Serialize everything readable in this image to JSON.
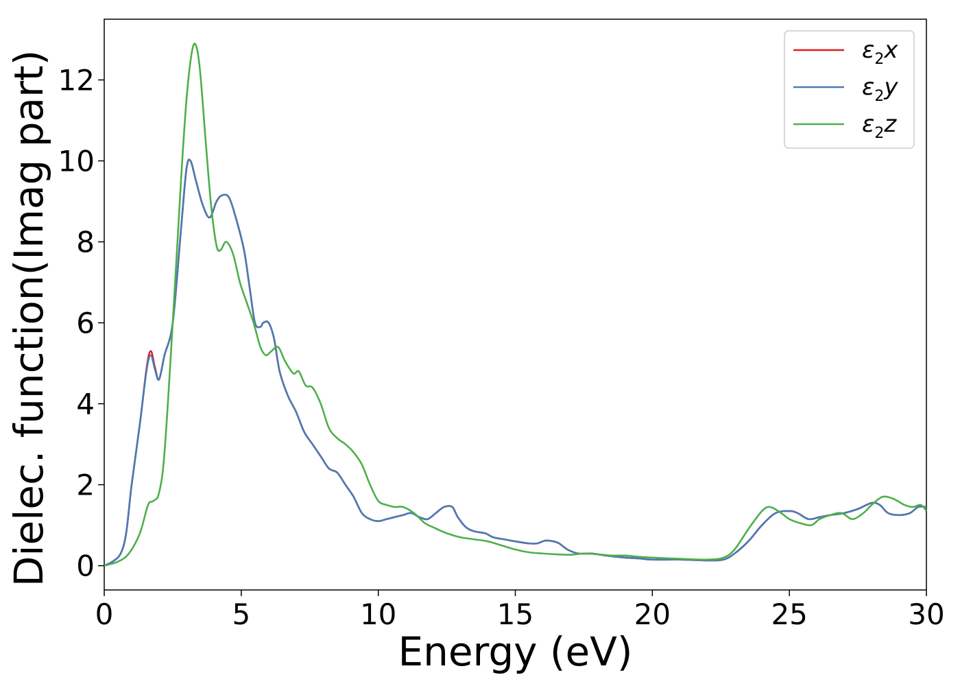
{
  "chart_data": {
    "type": "line",
    "title": "",
    "xlabel": "Energy (eV)",
    "ylabel": "Dielec. function(Imag part)",
    "xlim": [
      0,
      30
    ],
    "ylim": [
      -0.6,
      13.5
    ],
    "xticks": [
      0,
      5,
      10,
      15,
      20,
      25,
      30
    ],
    "xtick_labels": [
      "0",
      "5",
      "10",
      "15",
      "20",
      "25",
      "30"
    ],
    "yticks": [
      0,
      2,
      4,
      6,
      8,
      10,
      12
    ],
    "ytick_labels": [
      "0",
      "2",
      "4",
      "6",
      "8",
      "10",
      "12"
    ],
    "grid": false,
    "legend_position": "top-right",
    "series": [
      {
        "name": "ε2x",
        "legend": {
          "base": "ε",
          "sub": "2",
          "tail": "x"
        },
        "color": "#e41a1c",
        "x": [
          0,
          0.3,
          0.6,
          0.8,
          1.0,
          1.3,
          1.55,
          1.7,
          1.85,
          2.0,
          2.2,
          2.5,
          2.8,
          3.0,
          3.15,
          3.35,
          3.6,
          3.85,
          4.1,
          4.3,
          4.55,
          4.8,
          5.1,
          5.3,
          5.5,
          5.7,
          5.8,
          6.0,
          6.2,
          6.4,
          6.7,
          7.0,
          7.3,
          7.6,
          7.9,
          8.2,
          8.5,
          8.8,
          9.1,
          9.4,
          9.7,
          10.0,
          10.3,
          10.6,
          10.9,
          11.2,
          11.5,
          11.8,
          12.1,
          12.4,
          12.7,
          12.9,
          13.2,
          13.5,
          13.9,
          14.2,
          14.6,
          15.0,
          15.5,
          15.8,
          16.1,
          16.4,
          16.6,
          16.9,
          17.3,
          17.8,
          18.3,
          19.0,
          19.5,
          20.0,
          21.0,
          22.0,
          22.6,
          23.0,
          23.5,
          24.0,
          24.5,
          25.0,
          25.3,
          25.7,
          26.1,
          26.5,
          27.0,
          27.5,
          28.0,
          28.3,
          28.6,
          29.0,
          29.4,
          29.7,
          30.0
        ],
        "y": [
          0,
          0.1,
          0.3,
          0.8,
          2.0,
          3.5,
          4.9,
          5.3,
          4.9,
          4.6,
          5.2,
          6.0,
          8.3,
          9.8,
          10.0,
          9.5,
          8.9,
          8.6,
          9.0,
          9.15,
          9.1,
          8.6,
          7.8,
          6.9,
          6.0,
          5.9,
          6.0,
          6.0,
          5.6,
          4.8,
          4.2,
          3.8,
          3.3,
          3.0,
          2.7,
          2.4,
          2.3,
          2.0,
          1.7,
          1.3,
          1.15,
          1.1,
          1.15,
          1.2,
          1.25,
          1.3,
          1.2,
          1.15,
          1.3,
          1.45,
          1.45,
          1.2,
          0.95,
          0.85,
          0.8,
          0.7,
          0.65,
          0.6,
          0.55,
          0.55,
          0.62,
          0.6,
          0.55,
          0.4,
          0.3,
          0.3,
          0.25,
          0.2,
          0.18,
          0.15,
          0.15,
          0.13,
          0.15,
          0.3,
          0.6,
          1.0,
          1.3,
          1.35,
          1.3,
          1.15,
          1.2,
          1.25,
          1.3,
          1.4,
          1.55,
          1.5,
          1.3,
          1.25,
          1.3,
          1.45,
          1.45
        ]
      },
      {
        "name": "ε2y",
        "legend": {
          "base": "ε",
          "sub": "2",
          "tail": "y"
        },
        "color": "#4a7ab5",
        "x": [
          0,
          0.3,
          0.6,
          0.8,
          1.0,
          1.3,
          1.55,
          1.7,
          1.85,
          2.0,
          2.2,
          2.5,
          2.8,
          3.0,
          3.15,
          3.35,
          3.6,
          3.85,
          4.1,
          4.3,
          4.55,
          4.8,
          5.1,
          5.3,
          5.5,
          5.7,
          5.8,
          6.0,
          6.2,
          6.4,
          6.7,
          7.0,
          7.3,
          7.6,
          7.9,
          8.2,
          8.5,
          8.8,
          9.1,
          9.4,
          9.7,
          10.0,
          10.3,
          10.6,
          10.9,
          11.2,
          11.5,
          11.8,
          12.1,
          12.4,
          12.7,
          12.9,
          13.2,
          13.5,
          13.9,
          14.2,
          14.6,
          15.0,
          15.5,
          15.8,
          16.1,
          16.4,
          16.6,
          16.9,
          17.3,
          17.8,
          18.3,
          19.0,
          19.5,
          20.0,
          21.0,
          22.0,
          22.6,
          23.0,
          23.5,
          24.0,
          24.5,
          25.0,
          25.3,
          25.7,
          26.1,
          26.5,
          27.0,
          27.5,
          28.0,
          28.3,
          28.6,
          29.0,
          29.4,
          29.7,
          30.0
        ],
        "y": [
          0,
          0.1,
          0.3,
          0.8,
          2.0,
          3.5,
          4.85,
          5.2,
          4.85,
          4.6,
          5.2,
          6.0,
          8.3,
          9.8,
          10.0,
          9.5,
          8.9,
          8.6,
          9.0,
          9.15,
          9.1,
          8.6,
          7.8,
          6.9,
          6.0,
          5.9,
          6.0,
          6.0,
          5.6,
          4.8,
          4.2,
          3.8,
          3.3,
          3.0,
          2.7,
          2.4,
          2.3,
          2.0,
          1.7,
          1.3,
          1.15,
          1.1,
          1.15,
          1.2,
          1.25,
          1.3,
          1.2,
          1.15,
          1.3,
          1.45,
          1.45,
          1.2,
          0.95,
          0.85,
          0.8,
          0.7,
          0.65,
          0.6,
          0.55,
          0.55,
          0.62,
          0.6,
          0.55,
          0.4,
          0.3,
          0.3,
          0.25,
          0.2,
          0.18,
          0.15,
          0.15,
          0.13,
          0.15,
          0.3,
          0.6,
          1.0,
          1.3,
          1.35,
          1.3,
          1.15,
          1.2,
          1.25,
          1.3,
          1.4,
          1.55,
          1.5,
          1.3,
          1.25,
          1.3,
          1.45,
          1.45
        ]
      },
      {
        "name": "ε2z",
        "legend": {
          "base": "ε",
          "sub": "2",
          "tail": "z"
        },
        "color": "#4daf4a",
        "x": [
          0,
          0.5,
          0.9,
          1.3,
          1.6,
          1.8,
          2.0,
          2.2,
          2.5,
          2.8,
          3.0,
          3.2,
          3.35,
          3.5,
          3.7,
          3.9,
          4.1,
          4.25,
          4.45,
          4.7,
          4.95,
          5.2,
          5.45,
          5.7,
          5.9,
          6.1,
          6.35,
          6.6,
          6.9,
          7.1,
          7.35,
          7.6,
          7.9,
          8.2,
          8.5,
          8.8,
          9.1,
          9.4,
          9.7,
          10.0,
          10.3,
          10.6,
          10.9,
          11.3,
          11.7,
          12.0,
          12.5,
          13.0,
          13.5,
          14.0,
          14.5,
          15.0,
          15.5,
          16.0,
          16.5,
          17.0,
          17.5,
          18.0,
          18.5,
          19.0,
          19.5,
          20.0,
          21.0,
          22.0,
          22.6,
          23.0,
          23.5,
          24.0,
          24.3,
          24.7,
          25.0,
          25.4,
          25.8,
          26.1,
          26.5,
          26.9,
          27.3,
          27.7,
          28.0,
          28.4,
          28.8,
          29.2,
          29.5,
          29.8,
          30.0
        ],
        "y": [
          0,
          0.1,
          0.3,
          0.8,
          1.5,
          1.6,
          1.8,
          2.8,
          6.0,
          9.5,
          11.5,
          12.7,
          12.85,
          12.2,
          10.5,
          8.9,
          7.9,
          7.8,
          8.0,
          7.7,
          7.0,
          6.5,
          6.0,
          5.4,
          5.2,
          5.3,
          5.4,
          5.05,
          4.75,
          4.8,
          4.45,
          4.4,
          4.0,
          3.4,
          3.15,
          3.0,
          2.8,
          2.5,
          2.0,
          1.6,
          1.5,
          1.45,
          1.45,
          1.3,
          1.05,
          0.95,
          0.8,
          0.7,
          0.65,
          0.6,
          0.5,
          0.4,
          0.33,
          0.3,
          0.28,
          0.27,
          0.3,
          0.28,
          0.25,
          0.25,
          0.22,
          0.2,
          0.17,
          0.15,
          0.2,
          0.4,
          0.9,
          1.35,
          1.45,
          1.3,
          1.15,
          1.05,
          1.0,
          1.15,
          1.25,
          1.3,
          1.15,
          1.3,
          1.5,
          1.7,
          1.65,
          1.5,
          1.45,
          1.5,
          1.35
        ]
      }
    ]
  }
}
